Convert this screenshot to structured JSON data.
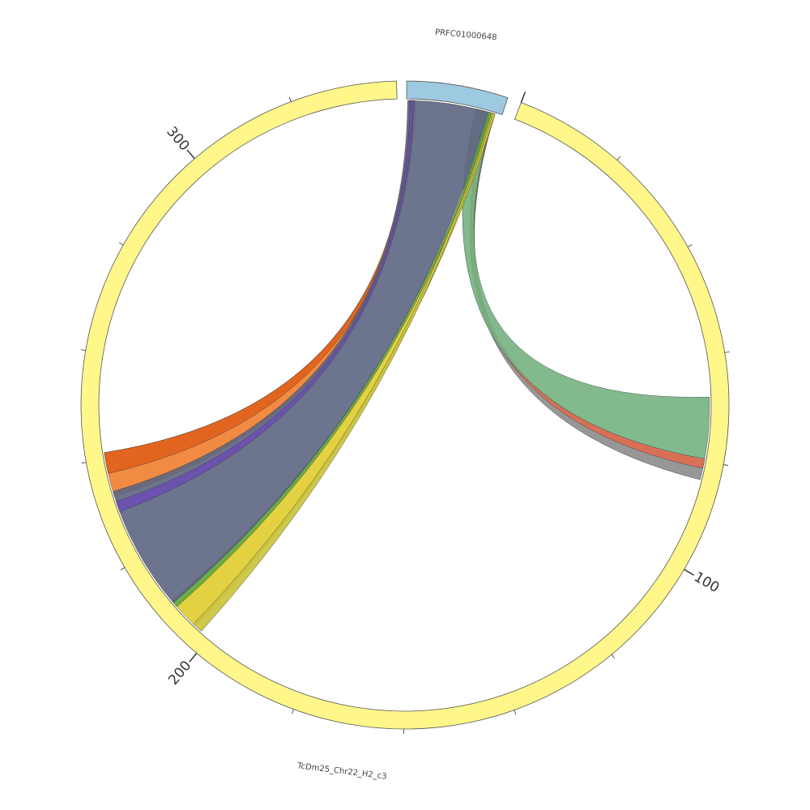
{
  "segments": [
    {
      "label": "PRFC01000648"
    },
    {
      "label": "TcDm25_Chr22_H2_c3"
    }
  ],
  "tick_labels": [
    "100",
    "200",
    "300"
  ]
}
